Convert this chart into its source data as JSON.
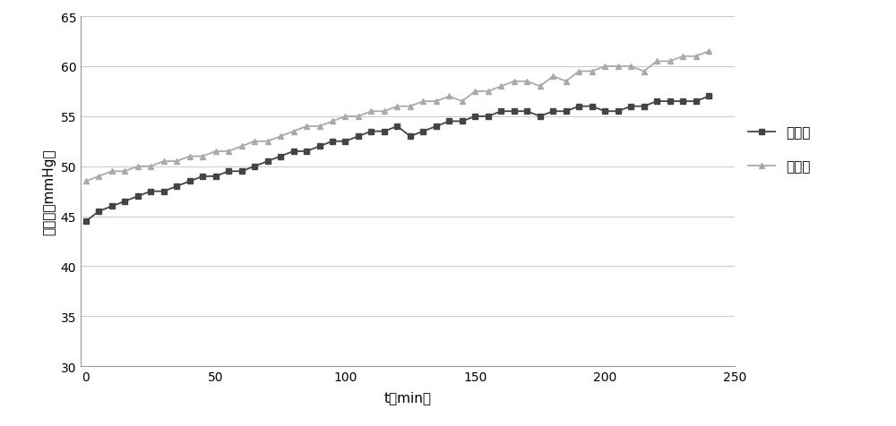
{
  "series1_label": "牛全血",
  "series2_label": "代全血",
  "series1_color": "#444444",
  "series2_color": "#aaaaaa",
  "xlabel": "t（min）",
  "ylabel": "跨膜压（mmHg）",
  "xlim": [
    -2,
    250
  ],
  "ylim": [
    30,
    65
  ],
  "yticks": [
    30,
    35,
    40,
    45,
    50,
    55,
    60,
    65
  ],
  "xticks": [
    0,
    50,
    100,
    150,
    200,
    250
  ],
  "series1_x": [
    0,
    5,
    10,
    15,
    20,
    25,
    30,
    35,
    40,
    45,
    50,
    55,
    60,
    65,
    70,
    75,
    80,
    85,
    90,
    95,
    100,
    105,
    110,
    115,
    120,
    125,
    130,
    135,
    140,
    145,
    150,
    155,
    160,
    165,
    170,
    175,
    180,
    185,
    190,
    195,
    200,
    205,
    210,
    215,
    220,
    225,
    230,
    235,
    240
  ],
  "series1_y": [
    44.5,
    45.5,
    46.0,
    46.5,
    47.0,
    47.5,
    47.5,
    48.0,
    48.5,
    49.0,
    49.0,
    49.5,
    49.5,
    50.0,
    50.5,
    51.0,
    51.5,
    51.5,
    52.0,
    52.5,
    52.5,
    53.0,
    53.5,
    53.5,
    54.0,
    53.0,
    53.5,
    54.0,
    54.5,
    54.5,
    55.0,
    55.0,
    55.5,
    55.5,
    55.5,
    55.0,
    55.5,
    55.5,
    56.0,
    56.0,
    55.5,
    55.5,
    56.0,
    56.0,
    56.5,
    56.5,
    56.5,
    56.5,
    57.0
  ],
  "series2_x": [
    0,
    5,
    10,
    15,
    20,
    25,
    30,
    35,
    40,
    45,
    50,
    55,
    60,
    65,
    70,
    75,
    80,
    85,
    90,
    95,
    100,
    105,
    110,
    115,
    120,
    125,
    130,
    135,
    140,
    145,
    150,
    155,
    160,
    165,
    170,
    175,
    180,
    185,
    190,
    195,
    200,
    205,
    210,
    215,
    220,
    225,
    230,
    235,
    240
  ],
  "series2_y": [
    48.5,
    49.0,
    49.5,
    49.5,
    50.0,
    50.0,
    50.5,
    50.5,
    51.0,
    51.0,
    51.5,
    51.5,
    52.0,
    52.5,
    52.5,
    53.0,
    53.5,
    54.0,
    54.0,
    54.5,
    55.0,
    55.0,
    55.5,
    55.5,
    56.0,
    56.0,
    56.5,
    56.5,
    57.0,
    56.5,
    57.5,
    57.5,
    58.0,
    58.5,
    58.5,
    58.0,
    59.0,
    58.5,
    59.5,
    59.5,
    60.0,
    60.0,
    60.0,
    59.5,
    60.5,
    60.5,
    61.0,
    61.0,
    61.5
  ],
  "background_color": "#ffffff",
  "grid_color": "#cccccc"
}
